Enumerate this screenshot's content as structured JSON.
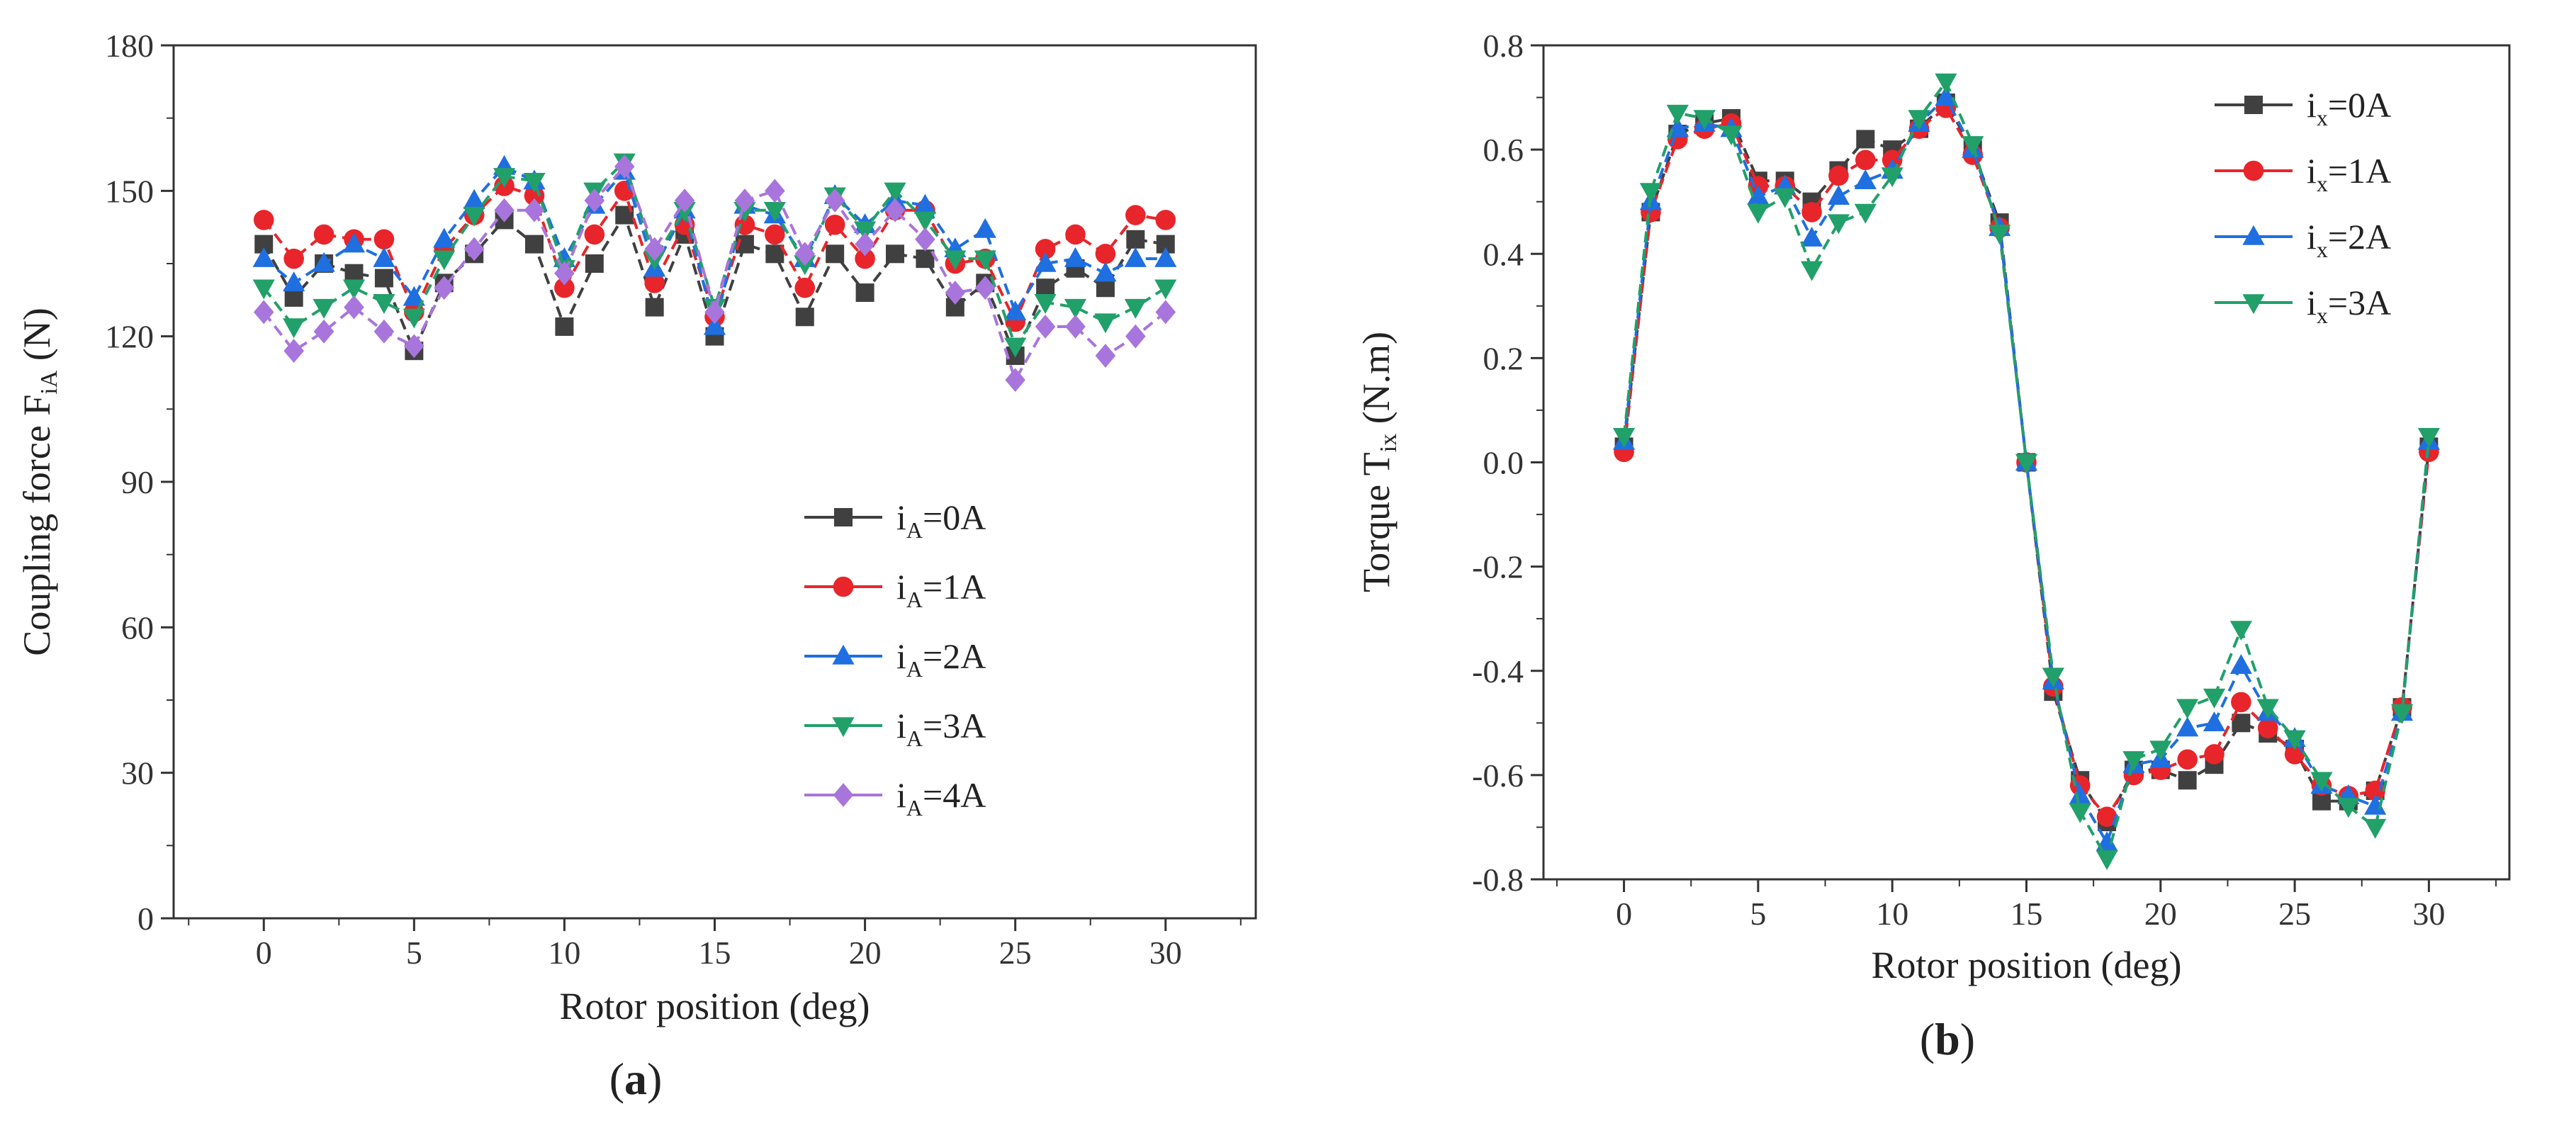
{
  "chart_data": [
    {
      "type": "line",
      "panel_label": "a",
      "xlabel": "Rotor position (deg)",
      "ylabel": "Coupling force F",
      "ylabel_sub": "iA",
      "ylabel_unit": "(N)",
      "xlim": [
        -3,
        33
      ],
      "ylim": [
        0,
        180
      ],
      "xticks": [
        0,
        5,
        10,
        15,
        20,
        25,
        30
      ],
      "yticks": [
        0,
        30,
        60,
        90,
        120,
        150,
        180
      ],
      "legend_position": "right-middle",
      "x": [
        0,
        1,
        2,
        3,
        4,
        5,
        6,
        7,
        8,
        9,
        10,
        11,
        12,
        13,
        14,
        15,
        16,
        17,
        18,
        19,
        20,
        21,
        22,
        23,
        24,
        25,
        26,
        27,
        28,
        29,
        30
      ],
      "series": [
        {
          "name": "i",
          "sub": "A",
          "suffix": "=0A",
          "color": "#404040",
          "marker": "square",
          "values": [
            139,
            128,
            135,
            133,
            132,
            117,
            131,
            137,
            144,
            139,
            122,
            135,
            145,
            126,
            141,
            120,
            139,
            137,
            124,
            137,
            129,
            137,
            136,
            126,
            131,
            116,
            130,
            134,
            130,
            140,
            139
          ]
        },
        {
          "name": "i",
          "sub": "A",
          "suffix": "=1A",
          "color": "#e8252a",
          "marker": "circle",
          "values": [
            144,
            136,
            141,
            140,
            140,
            125,
            138,
            145,
            151,
            149,
            130,
            141,
            150,
            131,
            143,
            124,
            143,
            141,
            130,
            143,
            136,
            146,
            146,
            135,
            136,
            123,
            138,
            141,
            137,
            145,
            144
          ]
        },
        {
          "name": "i",
          "sub": "A",
          "suffix": "=2A",
          "color": "#1f6fe0",
          "marker": "triangle-up",
          "values": [
            136,
            131,
            135,
            139,
            136,
            128,
            140,
            148,
            155,
            152,
            136,
            147,
            154,
            134,
            146,
            122,
            147,
            145,
            136,
            149,
            143,
            148,
            147,
            138,
            142,
            125,
            135,
            136,
            133,
            136,
            136
          ]
        },
        {
          "name": "i",
          "sub": "A",
          "suffix": "=3A",
          "color": "#21a06a",
          "marker": "triangle-down",
          "values": [
            130,
            122,
            126,
            130,
            127,
            124,
            136,
            145,
            153,
            152,
            134,
            150,
            156,
            136,
            146,
            126,
            146,
            146,
            135,
            149,
            142,
            150,
            144,
            136,
            136,
            118,
            127,
            126,
            123,
            126,
            130
          ]
        },
        {
          "name": "i",
          "sub": "A",
          "suffix": "=4A",
          "color": "#a875dc",
          "marker": "diamond",
          "values": [
            125,
            117,
            121,
            126,
            121,
            118,
            130,
            138,
            146,
            146,
            133,
            148,
            155,
            138,
            148,
            125,
            148,
            150,
            137,
            148,
            139,
            146,
            140,
            129,
            130,
            111,
            122,
            122,
            116,
            120,
            125
          ]
        }
      ]
    },
    {
      "type": "line",
      "panel_label": "b",
      "xlabel": "Rotor position (deg)",
      "ylabel": "Torque T",
      "ylabel_sub": "ix",
      "ylabel_unit": "(N.m)",
      "xlim": [
        -3,
        33
      ],
      "ylim": [
        -0.8,
        0.8
      ],
      "xticks": [
        0,
        5,
        10,
        15,
        20,
        25,
        30
      ],
      "yticks": [
        -0.8,
        -0.6,
        -0.4,
        -0.2,
        0.0,
        0.2,
        0.4,
        0.6,
        0.8
      ],
      "ytick_labels": [
        "-0.8",
        "-0.6",
        "-0.4",
        "-0.2",
        "0.0",
        "0.2",
        "0.4",
        "0.6",
        "0.8"
      ],
      "legend_position": "top-right",
      "x": [
        0,
        1,
        2,
        3,
        4,
        5,
        6,
        7,
        8,
        9,
        10,
        11,
        12,
        13,
        14,
        15,
        16,
        17,
        18,
        19,
        20,
        21,
        22,
        23,
        24,
        25,
        26,
        27,
        28,
        29,
        30
      ],
      "series": [
        {
          "name": "i",
          "sub": "x",
          "suffix": "=0A",
          "color": "#404040",
          "marker": "square",
          "values": [
            0.03,
            0.48,
            0.63,
            0.65,
            0.66,
            0.54,
            0.54,
            0.5,
            0.56,
            0.62,
            0.6,
            0.64,
            0.69,
            0.6,
            0.46,
            0.0,
            -0.44,
            -0.61,
            -0.69,
            -0.59,
            -0.59,
            -0.61,
            -0.58,
            -0.5,
            -0.52,
            -0.55,
            -0.65,
            -0.65,
            -0.63,
            -0.47,
            0.03
          ]
        },
        {
          "name": "i",
          "sub": "x",
          "suffix": "=1A",
          "color": "#e8252a",
          "marker": "circle",
          "values": [
            0.02,
            0.48,
            0.62,
            0.64,
            0.65,
            0.53,
            0.53,
            0.48,
            0.55,
            0.58,
            0.58,
            0.64,
            0.68,
            0.59,
            0.45,
            0.0,
            -0.43,
            -0.62,
            -0.68,
            -0.6,
            -0.59,
            -0.57,
            -0.56,
            -0.46,
            -0.51,
            -0.56,
            -0.62,
            -0.64,
            -0.63,
            -0.47,
            0.02
          ]
        },
        {
          "name": "i",
          "sub": "x",
          "suffix": "=2A",
          "color": "#1f6fe0",
          "marker": "triangle-up",
          "values": [
            0.04,
            0.5,
            0.64,
            0.65,
            0.64,
            0.51,
            0.53,
            0.43,
            0.51,
            0.54,
            0.56,
            0.65,
            0.7,
            0.6,
            0.45,
            0.0,
            -0.42,
            -0.64,
            -0.73,
            -0.58,
            -0.57,
            -0.51,
            -0.5,
            -0.39,
            -0.48,
            -0.53,
            -0.62,
            -0.64,
            -0.66,
            -0.48,
            0.04
          ]
        },
        {
          "name": "i",
          "sub": "x",
          "suffix": "=3A",
          "color": "#21a06a",
          "marker": "triangle-down",
          "values": [
            0.05,
            0.52,
            0.67,
            0.66,
            0.63,
            0.48,
            0.51,
            0.37,
            0.46,
            0.48,
            0.55,
            0.66,
            0.73,
            0.61,
            0.44,
            0.0,
            -0.41,
            -0.67,
            -0.76,
            -0.57,
            -0.55,
            -0.47,
            -0.45,
            -0.32,
            -0.47,
            -0.53,
            -0.61,
            -0.66,
            -0.7,
            -0.48,
            0.05
          ]
        }
      ]
    }
  ]
}
